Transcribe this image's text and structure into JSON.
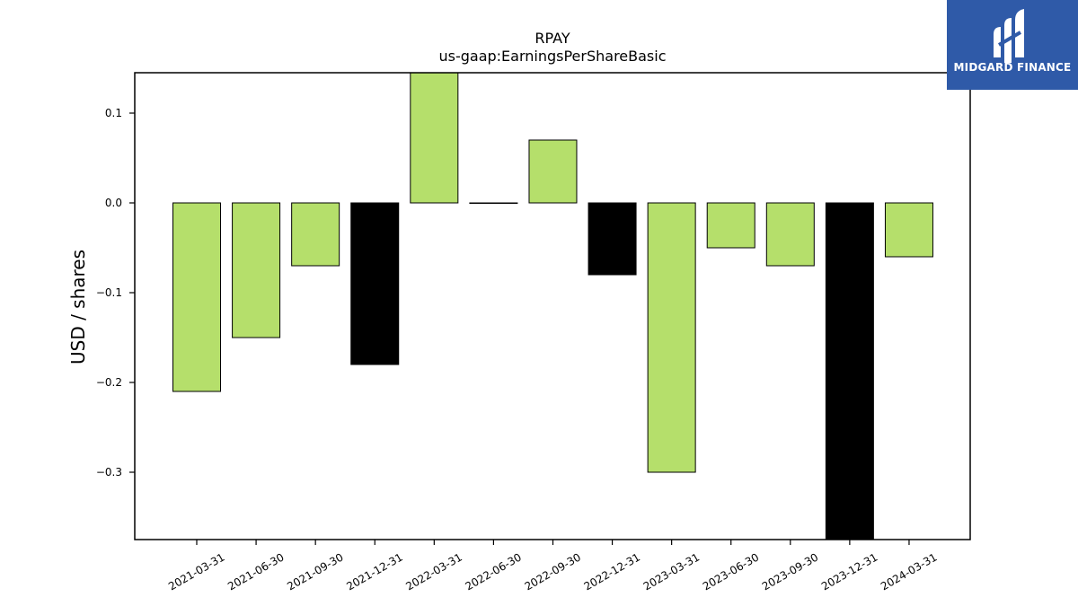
{
  "chart_data": {
    "type": "bar",
    "title": "RPAY",
    "subtitle": "us-gaap:EarningsPerShareBasic",
    "xlabel": "",
    "ylabel": "USD / shares",
    "ylim": [
      -0.375,
      0.145
    ],
    "yticks": [
      0.1,
      0.0,
      -0.1,
      -0.2,
      -0.3
    ],
    "ytick_labels": [
      "0.1",
      "0.0",
      "−0.1",
      "−0.2",
      "−0.3"
    ],
    "grid": false,
    "legend": "none",
    "categories": [
      "2021-03-31",
      "2021-06-30",
      "2021-09-30",
      "2021-12-31",
      "2022-03-31",
      "2022-06-30",
      "2022-09-30",
      "2022-12-31",
      "2023-03-31",
      "2023-06-30",
      "2023-09-30",
      "2023-12-31",
      "2024-03-31"
    ],
    "values": [
      -0.21,
      -0.15,
      -0.07,
      -0.18,
      0.15,
      0.0,
      0.07,
      -0.08,
      -0.3,
      -0.05,
      -0.07,
      -0.39,
      -0.06
    ],
    "bar_colors": [
      "#b5df6b",
      "#b5df6b",
      "#b5df6b",
      "#000000",
      "#b5df6b",
      "#b5df6b",
      "#b5df6b",
      "#000000",
      "#b5df6b",
      "#b5df6b",
      "#b5df6b",
      "#000000",
      "#b5df6b"
    ]
  },
  "logo": {
    "name": "midgard-finance-logo",
    "text": "MIDGARD FINANCE"
  },
  "colors": {
    "logo_bg": "#2f5aa8",
    "bar_green": "#b5df6b",
    "bar_black": "#000000"
  }
}
